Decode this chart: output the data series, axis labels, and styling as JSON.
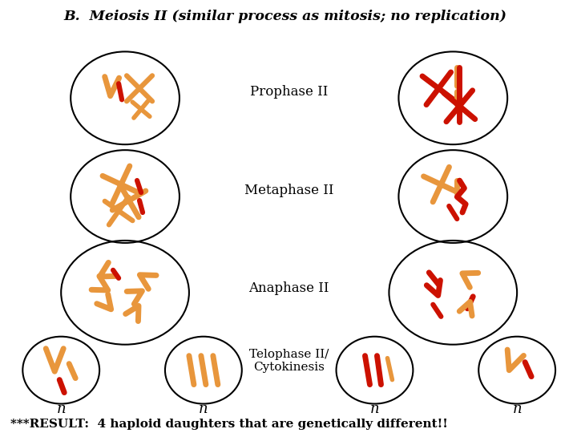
{
  "title": "B.  Meiosis II (similar process as mitosis; no replication)",
  "result_text": "***RESULT:  4 haploid daughters that are genetically different!!",
  "labels": [
    "Prophase II",
    "Metaphase II",
    "Anaphase II",
    "Telophase II/\nCytokinesis"
  ],
  "n_labels": [
    "n",
    "n",
    "n",
    "n"
  ],
  "orange": "#E8963C",
  "red": "#CC1100",
  "bg": "#FFFFFF"
}
